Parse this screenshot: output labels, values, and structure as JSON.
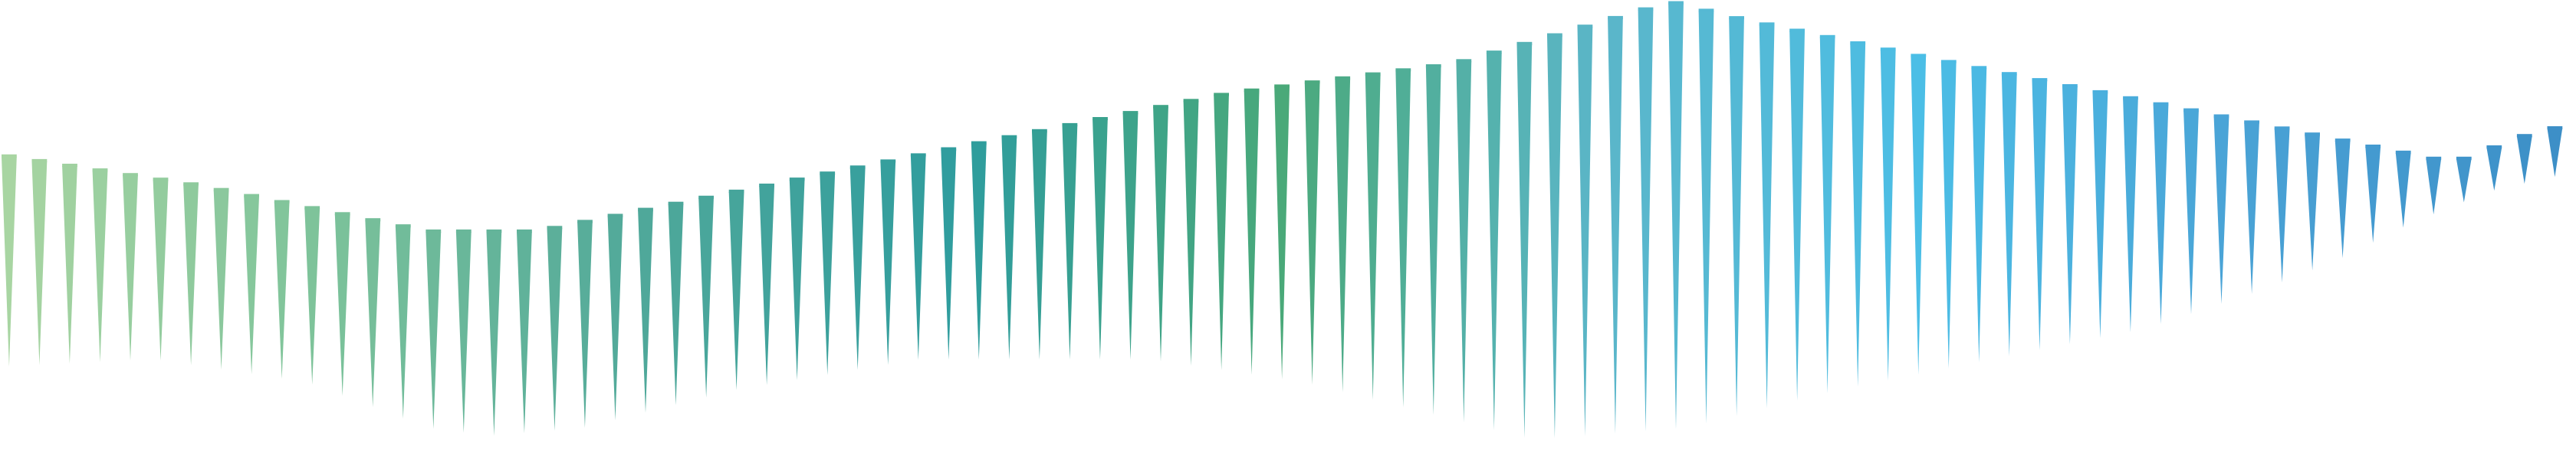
{
  "graphic": {
    "spike_count": 85,
    "color_stops": [
      "#a8d5a2",
      "#7cc29a",
      "#4fa89a",
      "#2e9c9e",
      "#4aa979",
      "#5bb6c9",
      "#4bbee6",
      "#4aa3d6",
      "#3d8fc7"
    ]
  }
}
